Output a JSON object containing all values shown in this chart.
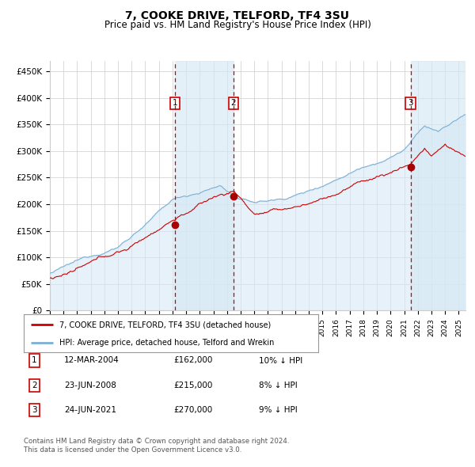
{
  "title": "7, COOKE DRIVE, TELFORD, TF4 3SU",
  "subtitle": "Price paid vs. HM Land Registry's House Price Index (HPI)",
  "ylabel_ticks": [
    "£0",
    "£50K",
    "£100K",
    "£150K",
    "£200K",
    "£250K",
    "£300K",
    "£350K",
    "£400K",
    "£450K"
  ],
  "ytick_vals": [
    0,
    50000,
    100000,
    150000,
    200000,
    250000,
    300000,
    350000,
    400000,
    450000
  ],
  "ylim": [
    0,
    470000
  ],
  "xlim_start": 1995.0,
  "xlim_end": 2025.5,
  "hpi_color": "#7BAFD4",
  "hpi_fill_color": "#D6E8F5",
  "price_color": "#CC0000",
  "marker_color": "#AA0000",
  "grid_color": "#CCCCCC",
  "background_color": "#FFFFFF",
  "sale_dates": [
    2004.19,
    2008.47,
    2021.47
  ],
  "sale_prices": [
    162000,
    215000,
    270000
  ],
  "sale_labels": [
    "1",
    "2",
    "3"
  ],
  "dashed_line_color": "#CC0000",
  "shade_color": "#D6E8F5",
  "legend_items": [
    "7, COOKE DRIVE, TELFORD, TF4 3SU (detached house)",
    "HPI: Average price, detached house, Telford and Wrekin"
  ],
  "table_rows": [
    [
      "1",
      "12-MAR-2004",
      "£162,000",
      "10% ↓ HPI"
    ],
    [
      "2",
      "23-JUN-2008",
      "£215,000",
      "8% ↓ HPI"
    ],
    [
      "3",
      "24-JUN-2021",
      "£270,000",
      "9% ↓ HPI"
    ]
  ],
  "footnote1": "Contains HM Land Registry data © Crown copyright and database right 2024.",
  "footnote2": "This data is licensed under the Open Government Licence v3.0.",
  "xtick_years": [
    1995,
    1996,
    1997,
    1998,
    1999,
    2000,
    2001,
    2002,
    2003,
    2004,
    2005,
    2006,
    2007,
    2008,
    2009,
    2010,
    2011,
    2012,
    2013,
    2014,
    2015,
    2016,
    2017,
    2018,
    2019,
    2020,
    2021,
    2022,
    2023,
    2024,
    2025
  ]
}
